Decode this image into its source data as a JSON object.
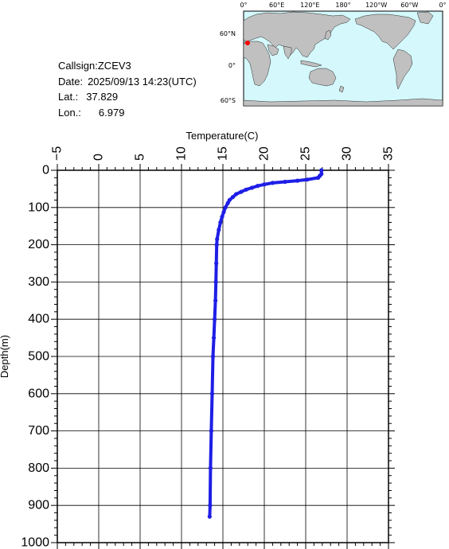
{
  "info": {
    "callsign_label": "Callsign:",
    "callsign": "ZCEV3",
    "date_label": "Date:",
    "date": "2025/09/13 14:23(UTC)",
    "lat_label": "Lat.:",
    "lat": "37.829",
    "lon_label": "Lon.:",
    "lon": "6.979"
  },
  "map": {
    "top_labels": [
      "0°",
      "60°E",
      "120°E",
      "180°",
      "120°W",
      "60°W",
      "0°"
    ],
    "left_labels": [
      "60°N",
      "0°",
      "60°S"
    ],
    "ocean_color": "#d4f8fb",
    "land_color": "#c0c0c0",
    "marker_color": "#ff0000"
  },
  "chart_data": {
    "type": "line",
    "xlabel": "Temperature(C)",
    "ylabel": "Depth(m)",
    "xlim": [
      -5,
      35
    ],
    "ylim": [
      1000,
      0
    ],
    "x_ticks": [
      -5,
      0,
      5,
      10,
      15,
      20,
      25,
      30,
      35
    ],
    "y_ticks": [
      0,
      100,
      200,
      300,
      400,
      500,
      600,
      700,
      800,
      900,
      1000
    ],
    "grid": true,
    "line_color": "#1e1ee6",
    "series": [
      {
        "x": [
          26.9,
          26.9,
          26.7,
          26.5,
          25.2,
          24.0,
          22.5,
          21.0,
          20.0,
          19.2,
          18.5,
          17.8,
          17.2,
          16.6,
          16.2,
          15.8,
          15.6,
          15.3,
          15.1,
          14.9,
          14.7,
          14.5,
          14.3,
          14.25,
          14.2,
          14.15,
          14.1,
          14.0,
          13.9,
          13.8,
          13.7,
          13.6,
          13.5,
          13.45,
          13.4
        ],
        "y": [
          0,
          10,
          15,
          20,
          25,
          28,
          31,
          34,
          38,
          42,
          47,
          52,
          58,
          64,
          72,
          80,
          88,
          100,
          112,
          125,
          140,
          160,
          185,
          200,
          250,
          300,
          350,
          400,
          450,
          500,
          600,
          700,
          800,
          900,
          930
        ]
      }
    ]
  }
}
